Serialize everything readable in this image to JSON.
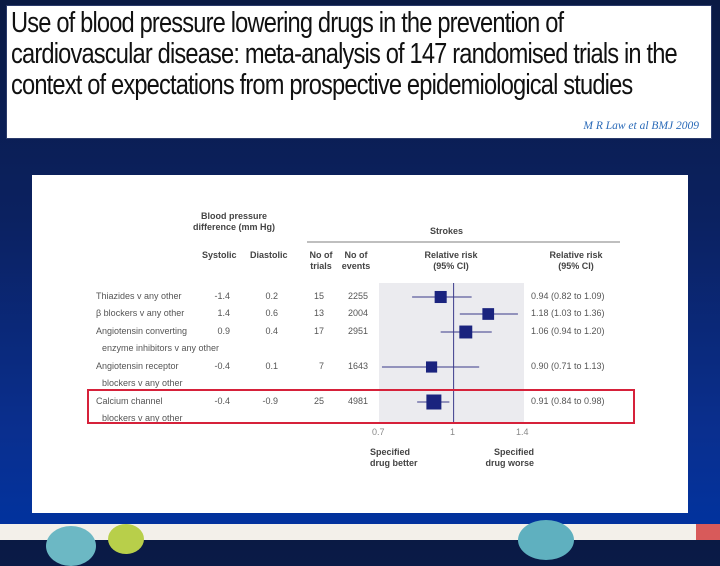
{
  "slide": {
    "title": "Use of blood pressure lowering drugs in the prevention of cardiovascular disease: meta-analysis of 147 randomised trials in the context of expectations from prospective epidemiological studies",
    "citation": "M R Law et al BMJ 2009"
  },
  "table": {
    "bp_header": "Blood pressure difference (mm Hg)",
    "systolic_header": "Systolic",
    "diastolic_header": "Diastolic",
    "trials_header": "No of trials",
    "events_header": "No of events",
    "strokes_header": "Strokes",
    "rr_plot_header": "Relative risk (95% CI)",
    "rr_text_header": "Relative risk (95% CI)",
    "rows": [
      {
        "label": "Thiazides v any other",
        "label2": "",
        "systolic": "-1.4",
        "diastolic": "0.2",
        "trials": "15",
        "events": "2255",
        "rr_text": "0.94 (0.82 to 1.09)"
      },
      {
        "label": "β blockers v any other",
        "label2": "",
        "systolic": "1.4",
        "diastolic": "0.6",
        "trials": "13",
        "events": "2004",
        "rr_text": "1.18 (1.03 to 1.36)"
      },
      {
        "label": "Angiotensin converting",
        "label2": "enzyme inhibitors v any other",
        "systolic": "0.9",
        "diastolic": "0.4",
        "trials": "17",
        "events": "2951",
        "rr_text": "1.06 (0.94 to 1.20)"
      },
      {
        "label": "Angiotensin receptor",
        "label2": "blockers v any other",
        "systolic": "-0.4",
        "diastolic": "0.1",
        "trials": "7",
        "events": "1643",
        "rr_text": "0.90 (0.71 to 1.13)"
      },
      {
        "label": "Calcium channel",
        "label2": "blockers v any other",
        "systolic": "-0.4",
        "diastolic": "-0.9",
        "trials": "25",
        "events": "4981",
        "rr_text": "0.91 (0.84 to 0.98)"
      }
    ],
    "favours_left": "Specified drug better",
    "favours_right": "Specified drug worse"
  },
  "chart_data": {
    "type": "forest",
    "title": "Strokes",
    "xlabel": "Relative risk (95% CI)",
    "xscale": "log",
    "xlim": [
      0.7,
      1.4
    ],
    "xticks": [
      "0.7",
      "1",
      "1.4"
    ],
    "reference_line": 1,
    "categories": [
      "Thiazides",
      "β blockers",
      "ACE inhibitors",
      "Angiotensin receptor blockers",
      "Calcium channel blockers"
    ],
    "estimates": [
      0.94,
      1.18,
      1.06,
      0.9,
      0.91
    ],
    "lower": [
      0.82,
      1.03,
      0.94,
      0.71,
      0.84
    ],
    "upper": [
      1.09,
      1.36,
      1.2,
      1.13,
      0.98
    ],
    "events": [
      2255,
      2004,
      2951,
      1643,
      4981
    ],
    "highlighted": "Calcium channel blockers",
    "colors": {
      "marker": "#1a237e",
      "shade": "#ebebef",
      "highlight": "#d6213a"
    }
  }
}
